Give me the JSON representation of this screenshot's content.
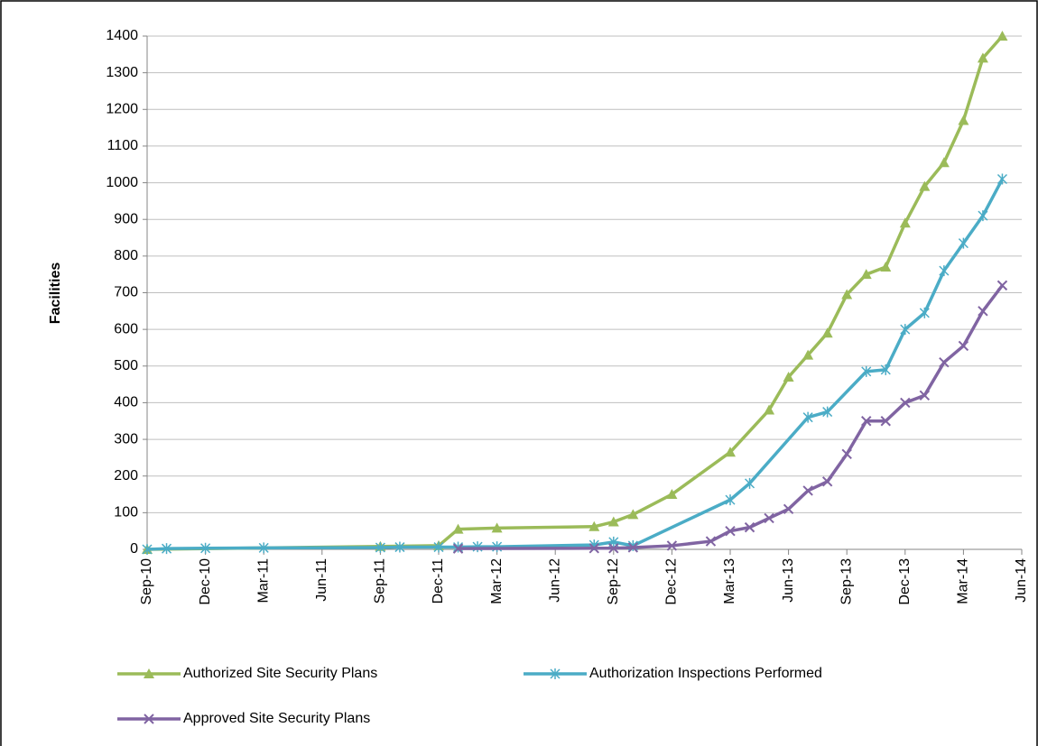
{
  "chart_data": {
    "type": "line",
    "ylabel": "Facilities",
    "ylim": [
      0,
      1400
    ],
    "yticks": [
      0,
      100,
      200,
      300,
      400,
      500,
      600,
      700,
      800,
      900,
      1000,
      1100,
      1200,
      1300,
      1400
    ],
    "xlim": [
      "2010-09",
      "2014-06"
    ],
    "xticks": [
      {
        "value": "2010-09",
        "label": "Sep-10"
      },
      {
        "value": "2010-12",
        "label": "Dec-10"
      },
      {
        "value": "2011-03",
        "label": "Mar-11"
      },
      {
        "value": "2011-06",
        "label": "Jun-11"
      },
      {
        "value": "2011-09",
        "label": "Sep-11"
      },
      {
        "value": "2011-12",
        "label": "Dec-11"
      },
      {
        "value": "2012-03",
        "label": "Mar-12"
      },
      {
        "value": "2012-06",
        "label": "Jun-12"
      },
      {
        "value": "2012-09",
        "label": "Sep-12"
      },
      {
        "value": "2012-12",
        "label": "Dec-12"
      },
      {
        "value": "2013-03",
        "label": "Mar-13"
      },
      {
        "value": "2013-06",
        "label": "Jun-13"
      },
      {
        "value": "2013-09",
        "label": "Sep-13"
      },
      {
        "value": "2013-12",
        "label": "Dec-13"
      },
      {
        "value": "2014-03",
        "label": "Mar-14"
      },
      {
        "value": "2014-06",
        "label": "Jun-14"
      }
    ],
    "grid": true,
    "legend": "bottom",
    "series": [
      {
        "name": "Authorized Site Security Plans",
        "color": "#9bbb59",
        "marker": "triangle",
        "x": [
          "2010-09",
          "2011-09",
          "2011-12",
          "2012-01",
          "2012-03",
          "2012-08",
          "2012-09",
          "2012-10",
          "2012-12",
          "2013-03",
          "2013-05",
          "2013-06",
          "2013-07",
          "2013-08",
          "2013-09",
          "2013-10",
          "2013-11",
          "2013-12",
          "2014-01",
          "2014-02",
          "2014-03",
          "2014-04",
          "2014-05"
        ],
        "values": [
          0,
          8,
          10,
          55,
          58,
          62,
          75,
          95,
          150,
          265,
          380,
          470,
          530,
          590,
          695,
          750,
          770,
          890,
          990,
          1055,
          1170,
          1340,
          1400
        ]
      },
      {
        "name": "Authorization Inspections Performed",
        "color": "#4bacc6",
        "marker": "asterisk",
        "x": [
          "2010-09",
          "2010-10",
          "2010-12",
          "2011-03",
          "2011-09",
          "2011-10",
          "2011-12",
          "2012-01",
          "2012-02",
          "2012-03",
          "2012-08",
          "2012-09",
          "2012-10",
          "2013-03",
          "2013-04",
          "2013-07",
          "2013-08",
          "2013-10",
          "2013-11",
          "2013-12",
          "2014-01",
          "2014-02",
          "2014-03",
          "2014-04",
          "2014-05"
        ],
        "values": [
          0,
          2,
          3,
          4,
          5,
          6,
          6,
          6,
          7,
          7,
          12,
          20,
          10,
          135,
          180,
          360,
          375,
          485,
          490,
          600,
          645,
          760,
          835,
          910,
          1010
        ]
      },
      {
        "name": "Approved Site Security Plans",
        "color": "#8064a2",
        "marker": "x",
        "x": [
          "2012-01",
          "2012-08",
          "2012-09",
          "2012-10",
          "2012-12",
          "2013-02",
          "2013-03",
          "2013-04",
          "2013-05",
          "2013-06",
          "2013-07",
          "2013-08",
          "2013-09",
          "2013-10",
          "2013-11",
          "2013-12",
          "2014-01",
          "2014-02",
          "2014-03",
          "2014-04",
          "2014-05"
        ],
        "values": [
          2,
          3,
          3,
          5,
          10,
          22,
          50,
          60,
          85,
          110,
          160,
          185,
          260,
          350,
          350,
          400,
          420,
          510,
          555,
          650,
          720
        ]
      }
    ]
  }
}
